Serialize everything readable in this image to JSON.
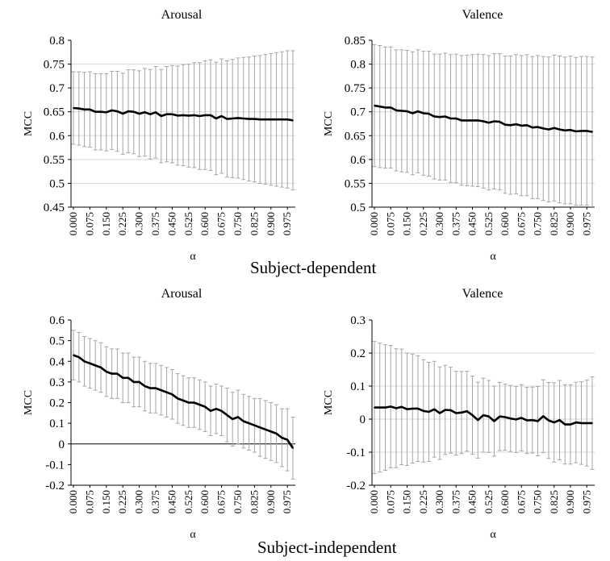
{
  "sections": {
    "top": "Subject-dependent",
    "bottom": "Subject-independent"
  },
  "colors": {
    "line": "#000000",
    "errorbar": "#a6a6a6",
    "grid": "#d9d9d9",
    "zero_line": "#000000"
  },
  "chart_data": [
    {
      "type": "line",
      "title": "Arousal",
      "xlabel": "α",
      "ylabel": "MCC",
      "ylim": [
        0.45,
        0.8
      ],
      "yticks": [
        "0.8",
        "0.75",
        "0.7",
        "0.65",
        "0.6",
        "0.55",
        "0.5",
        "0.45"
      ],
      "xtick_labels": [
        "0.000",
        "0.075",
        "0.150",
        "0.225",
        "0.300",
        "0.375",
        "0.450",
        "0.525",
        "0.600",
        "0.675",
        "0.750",
        "0.825",
        "0.900",
        "0.975"
      ],
      "grid": true,
      "zero_line": false,
      "x": [
        0.0,
        0.025,
        0.05,
        0.075,
        0.1,
        0.125,
        0.15,
        0.175,
        0.2,
        0.225,
        0.25,
        0.275,
        0.3,
        0.325,
        0.35,
        0.375,
        0.4,
        0.425,
        0.45,
        0.475,
        0.5,
        0.525,
        0.55,
        0.575,
        0.6,
        0.625,
        0.65,
        0.675,
        0.7,
        0.725,
        0.75,
        0.775,
        0.8,
        0.825,
        0.85,
        0.875,
        0.9,
        0.925,
        0.95,
        0.975,
        1.0
      ],
      "series": [
        {
          "values": [
            0.658,
            0.657,
            0.655,
            0.655,
            0.65,
            0.65,
            0.649,
            0.653,
            0.651,
            0.646,
            0.651,
            0.65,
            0.646,
            0.649,
            0.645,
            0.649,
            0.641,
            0.645,
            0.645,
            0.642,
            0.643,
            0.642,
            0.643,
            0.641,
            0.643,
            0.643,
            0.636,
            0.641,
            0.635,
            0.636,
            0.637,
            0.636,
            0.635,
            0.635,
            0.634,
            0.634,
            0.634,
            0.634,
            0.634,
            0.634,
            0.632
          ],
          "error": [
            0.076,
            0.077,
            0.078,
            0.079,
            0.08,
            0.08,
            0.081,
            0.082,
            0.084,
            0.085,
            0.087,
            0.088,
            0.09,
            0.092,
            0.094,
            0.096,
            0.098,
            0.1,
            0.102,
            0.104,
            0.106,
            0.108,
            0.11,
            0.112,
            0.114,
            0.116,
            0.118,
            0.12,
            0.122,
            0.124,
            0.126,
            0.128,
            0.13,
            0.132,
            0.134,
            0.136,
            0.138,
            0.14,
            0.142,
            0.144,
            0.146
          ]
        }
      ]
    },
    {
      "type": "line",
      "title": "Valence",
      "xlabel": "α",
      "ylabel": "MCC",
      "ylim": [
        0.5,
        0.85
      ],
      "yticks": [
        "0.85",
        "0.8",
        "0.75",
        "0.7",
        "0.65",
        "0.6",
        "0.55",
        "0.5"
      ],
      "xtick_labels": [
        "0.000",
        "0.075",
        "0.150",
        "0.225",
        "0.300",
        "0.375",
        "0.450",
        "0.525",
        "0.600",
        "0.675",
        "0.750",
        "0.825",
        "0.900",
        "0.975"
      ],
      "grid": true,
      "zero_line": false,
      "x": [
        0.0,
        0.025,
        0.05,
        0.075,
        0.1,
        0.125,
        0.15,
        0.175,
        0.2,
        0.225,
        0.25,
        0.275,
        0.3,
        0.325,
        0.35,
        0.375,
        0.4,
        0.425,
        0.45,
        0.475,
        0.5,
        0.525,
        0.55,
        0.575,
        0.6,
        0.625,
        0.65,
        0.675,
        0.7,
        0.725,
        0.75,
        0.775,
        0.8,
        0.825,
        0.85,
        0.875,
        0.9,
        0.925,
        0.95,
        0.975,
        1.0
      ],
      "series": [
        {
          "values": [
            0.713,
            0.711,
            0.709,
            0.709,
            0.703,
            0.702,
            0.701,
            0.697,
            0.701,
            0.697,
            0.696,
            0.69,
            0.689,
            0.69,
            0.686,
            0.686,
            0.682,
            0.682,
            0.682,
            0.682,
            0.68,
            0.677,
            0.68,
            0.679,
            0.673,
            0.672,
            0.674,
            0.671,
            0.672,
            0.667,
            0.668,
            0.665,
            0.663,
            0.666,
            0.663,
            0.661,
            0.662,
            0.659,
            0.66,
            0.66,
            0.658
          ],
          "error": [
            0.128,
            0.128,
            0.127,
            0.127,
            0.127,
            0.128,
            0.128,
            0.129,
            0.129,
            0.13,
            0.131,
            0.131,
            0.132,
            0.133,
            0.134,
            0.135,
            0.136,
            0.137,
            0.138,
            0.139,
            0.14,
            0.141,
            0.142,
            0.143,
            0.144,
            0.145,
            0.146,
            0.147,
            0.148,
            0.149,
            0.15,
            0.151,
            0.152,
            0.153,
            0.154,
            0.154,
            0.155,
            0.155,
            0.156,
            0.156,
            0.157
          ]
        }
      ]
    },
    {
      "type": "line",
      "title": "Arousal",
      "xlabel": "α",
      "ylabel": "MCC",
      "ylim": [
        -0.2,
        0.6
      ],
      "yticks": [
        "0.6",
        "0.5",
        "0.4",
        "0.3",
        "0.2",
        "0.1",
        "0",
        "-0.1",
        "-0.2"
      ],
      "xtick_labels": [
        "0.000",
        "0.075",
        "0.150",
        "0.225",
        "0.300",
        "0.375",
        "0.450",
        "0.525",
        "0.600",
        "0.675",
        "0.750",
        "0.825",
        "0.900",
        "0.975"
      ],
      "grid": false,
      "zero_line": true,
      "x": [
        0.0,
        0.025,
        0.05,
        0.075,
        0.1,
        0.125,
        0.15,
        0.175,
        0.2,
        0.225,
        0.25,
        0.275,
        0.3,
        0.325,
        0.35,
        0.375,
        0.4,
        0.425,
        0.45,
        0.475,
        0.5,
        0.525,
        0.55,
        0.575,
        0.6,
        0.625,
        0.65,
        0.675,
        0.7,
        0.725,
        0.75,
        0.775,
        0.8,
        0.825,
        0.85,
        0.875,
        0.9,
        0.925,
        0.95,
        0.975,
        1.0
      ],
      "series": [
        {
          "values": [
            0.43,
            0.42,
            0.4,
            0.39,
            0.38,
            0.37,
            0.35,
            0.34,
            0.34,
            0.32,
            0.32,
            0.3,
            0.3,
            0.28,
            0.27,
            0.27,
            0.26,
            0.25,
            0.24,
            0.22,
            0.21,
            0.2,
            0.2,
            0.19,
            0.18,
            0.16,
            0.17,
            0.16,
            0.14,
            0.12,
            0.13,
            0.11,
            0.1,
            0.09,
            0.08,
            0.07,
            0.06,
            0.05,
            0.03,
            0.02,
            -0.02
          ],
          "error": [
            0.12,
            0.12,
            0.12,
            0.12,
            0.12,
            0.12,
            0.12,
            0.12,
            0.12,
            0.12,
            0.12,
            0.12,
            0.12,
            0.12,
            0.12,
            0.12,
            0.12,
            0.12,
            0.12,
            0.12,
            0.12,
            0.12,
            0.12,
            0.12,
            0.12,
            0.12,
            0.12,
            0.12,
            0.13,
            0.13,
            0.13,
            0.13,
            0.13,
            0.13,
            0.14,
            0.14,
            0.14,
            0.14,
            0.14,
            0.15,
            0.15
          ]
        }
      ]
    },
    {
      "type": "line",
      "title": "Valence",
      "xlabel": "α",
      "ylabel": "MCC",
      "ylim": [
        -0.2,
        0.3
      ],
      "yticks": [
        "0.3",
        "0.2",
        "0.1",
        "0",
        "-0.1",
        "-0.2"
      ],
      "xtick_labels": [
        "0.000",
        "0.075",
        "0.150",
        "0.225",
        "0.300",
        "0.375",
        "0.450",
        "0.525",
        "0.600",
        "0.675",
        "0.750",
        "0.825",
        "0.900",
        "0.975"
      ],
      "grid": true,
      "zero_line": false,
      "x": [
        0.0,
        0.025,
        0.05,
        0.075,
        0.1,
        0.125,
        0.15,
        0.175,
        0.2,
        0.225,
        0.25,
        0.275,
        0.3,
        0.325,
        0.35,
        0.375,
        0.4,
        0.425,
        0.45,
        0.475,
        0.5,
        0.525,
        0.55,
        0.575,
        0.6,
        0.625,
        0.65,
        0.675,
        0.7,
        0.725,
        0.75,
        0.775,
        0.8,
        0.825,
        0.85,
        0.875,
        0.9,
        0.925,
        0.95,
        0.975,
        1.0
      ],
      "series": [
        {
          "values": [
            0.035,
            0.035,
            0.035,
            0.038,
            0.033,
            0.037,
            0.03,
            0.032,
            0.032,
            0.025,
            0.022,
            0.03,
            0.018,
            0.028,
            0.027,
            0.018,
            0.02,
            0.024,
            0.012,
            -0.003,
            0.012,
            0.008,
            -0.006,
            0.008,
            0.006,
            0.002,
            -0.001,
            0.004,
            -0.004,
            -0.003,
            -0.006,
            0.009,
            -0.004,
            -0.01,
            -0.003,
            -0.016,
            -0.016,
            -0.01,
            -0.012,
            -0.012,
            -0.012
          ],
          "error": [
            0.2,
            0.195,
            0.19,
            0.185,
            0.18,
            0.175,
            0.17,
            0.165,
            0.16,
            0.155,
            0.15,
            0.145,
            0.14,
            0.135,
            0.13,
            0.127,
            0.124,
            0.121,
            0.118,
            0.115,
            0.112,
            0.109,
            0.106,
            0.103,
            0.1,
            0.1,
            0.1,
            0.1,
            0.1,
            0.1,
            0.105,
            0.11,
            0.115,
            0.12,
            0.12,
            0.12,
            0.12,
            0.122,
            0.125,
            0.13,
            0.14
          ]
        }
      ]
    }
  ]
}
